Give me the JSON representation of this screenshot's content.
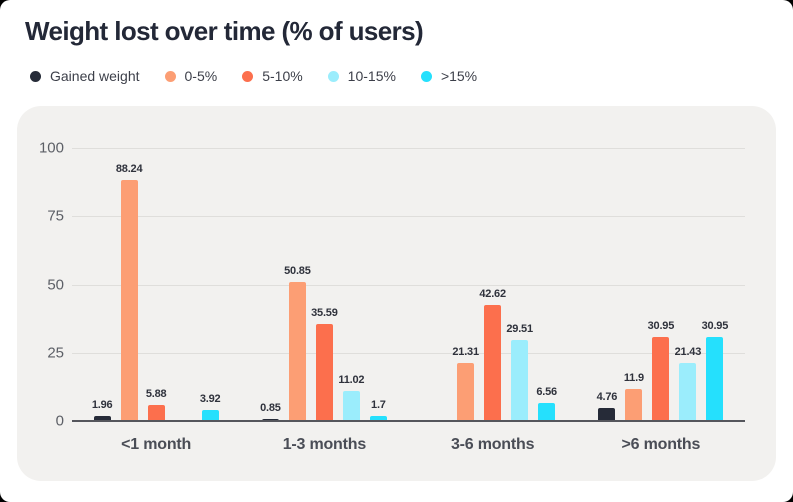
{
  "title": "Weight lost over time (% of users)",
  "colors": {
    "page_background": "#000000",
    "surface": "#FFFFFF",
    "card_background": "#F2F1EF",
    "grid_line": "#DFDEDB",
    "axis_line": "#55565C",
    "title_text": "#232837",
    "legend_text": "#3C3F49",
    "tick_text": "#5C5F66",
    "category_text": "#4A4D56",
    "value_text": "#2F323C"
  },
  "chart_data": {
    "type": "bar",
    "title": "Weight lost over time (% of users)",
    "categories": [
      "<1 month",
      "1-3 months",
      "3-6 months",
      ">6 months"
    ],
    "series": [
      {
        "name": "Gained weight",
        "color": "#262B38",
        "values": [
          1.96,
          0.85,
          0,
          4.76
        ],
        "labels": [
          "1.96",
          "0.85",
          "",
          "4.76"
        ]
      },
      {
        "name": "0-5%",
        "color": "#FC9E74",
        "values": [
          88.24,
          50.85,
          21.31,
          11.9
        ],
        "labels": [
          "88.24",
          "50.85",
          "21.31",
          "11.9"
        ]
      },
      {
        "name": "5-10%",
        "color": "#FC6F4D",
        "values": [
          5.88,
          35.59,
          42.62,
          30.95
        ],
        "labels": [
          "5.88",
          "35.59",
          "42.62",
          "30.95"
        ]
      },
      {
        "name": "10-15%",
        "color": "#9BEDFC",
        "values": [
          0,
          11.02,
          29.51,
          21.43
        ],
        "labels": [
          "",
          "11.02",
          "29.51",
          "21.43"
        ]
      },
      {
        "name": ">15%",
        "color": "#25E0FD",
        "values": [
          3.92,
          1.7,
          6.56,
          30.95
        ],
        "labels": [
          "3.92",
          "1.7",
          "6.56",
          "30.95"
        ]
      }
    ],
    "xlabel": "",
    "ylabel": "",
    "ylim": [
      0,
      100
    ],
    "y_ticks": [
      0,
      25,
      50,
      75,
      100
    ],
    "grid": true,
    "legend_position": "top"
  }
}
